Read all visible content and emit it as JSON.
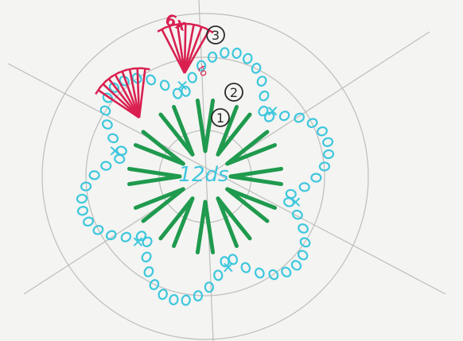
{
  "colors": {
    "paper": "#f4f4f2",
    "guide": "#bdbdbd",
    "round1": "#1f9a4e",
    "round2": "#3ec7dd",
    "round3": "#d92050",
    "pen": "#2a2a2a",
    "center_text": "#3ec7dd"
  },
  "diagram": {
    "center_label": "12ds",
    "round_numbers": [
      "1",
      "2",
      "3"
    ],
    "repeat_label": "6x",
    "turn_label": "to"
  }
}
